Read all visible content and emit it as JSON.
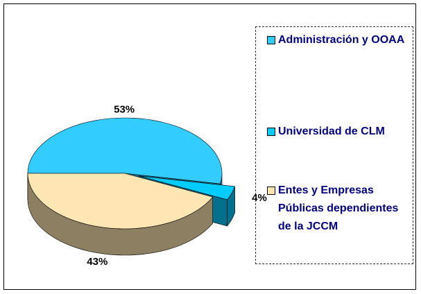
{
  "chart_data": {
    "type": "pie",
    "categories": [
      "Administración y OOAA",
      "Universidad de CLM",
      "Entes y Empresas Públicas dependientes de la JCCM"
    ],
    "values": [
      53,
      4,
      43
    ],
    "value_labels": [
      "53%",
      "4%",
      "43%"
    ],
    "colors": [
      "#33ccff",
      "#00ccff",
      "#ffe6b3"
    ],
    "explode": [
      false,
      true,
      false
    ],
    "legend": "right"
  }
}
